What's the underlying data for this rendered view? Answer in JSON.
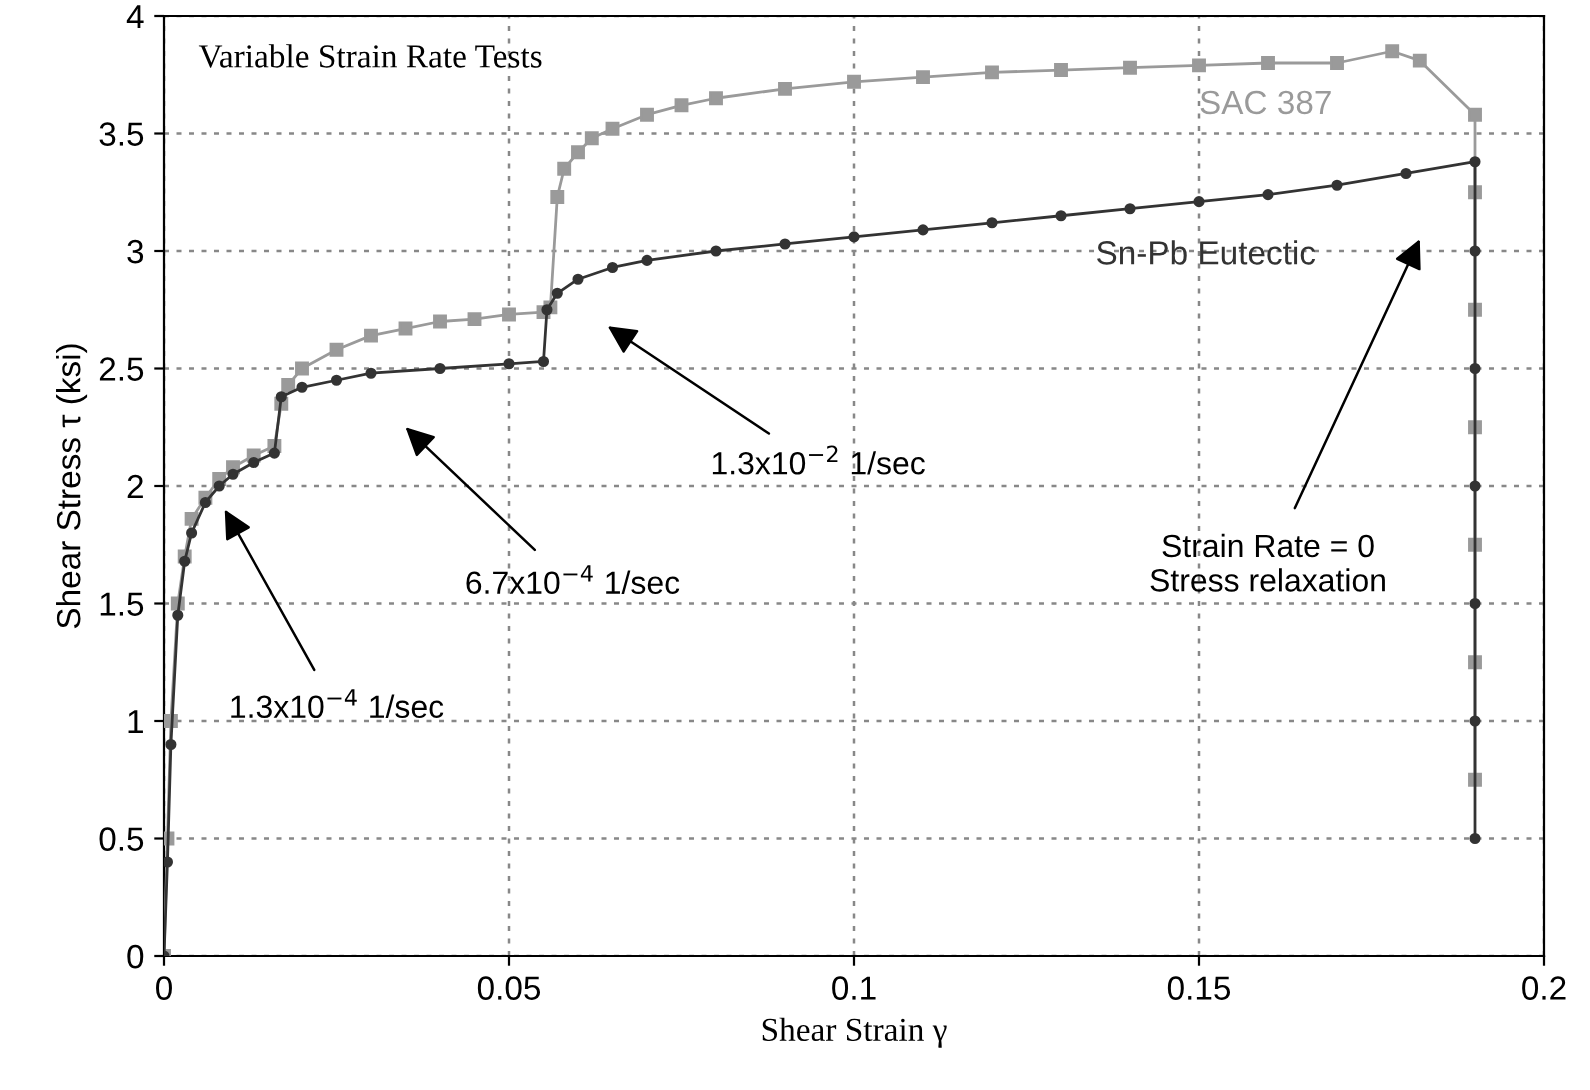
{
  "chart_data": {
    "type": "line",
    "title": "Variable Strain Rate Tests",
    "xlabel": "Shear Strain γ",
    "ylabel": "Shear Stress τ (ksi)",
    "xlim": [
      0,
      0.2
    ],
    "xticks": [
      0,
      0.05,
      0.1,
      0.15,
      0.2
    ],
    "ylim": [
      0,
      4
    ],
    "yticks": [
      0,
      0.5,
      1,
      1.5,
      2,
      2.5,
      3,
      3.5,
      4
    ],
    "grid": true,
    "legend": false,
    "series": [
      {
        "name": "SAC 387",
        "color": "#9a9a9a",
        "marker": "square",
        "x": [
          0,
          0.0005,
          0.001,
          0.002,
          0.003,
          0.004,
          0.006,
          0.008,
          0.01,
          0.013,
          0.016,
          0.017,
          0.018,
          0.02,
          0.025,
          0.03,
          0.035,
          0.04,
          0.045,
          0.05,
          0.055,
          0.056,
          0.057,
          0.058,
          0.06,
          0.062,
          0.065,
          0.07,
          0.075,
          0.08,
          0.09,
          0.1,
          0.11,
          0.12,
          0.13,
          0.14,
          0.15,
          0.16,
          0.17,
          0.178,
          0.182,
          0.19,
          0.19,
          0.19,
          0.19,
          0.19,
          0.19,
          0.19
        ],
        "values": [
          0,
          0.5,
          1.0,
          1.5,
          1.7,
          1.86,
          1.95,
          2.03,
          2.08,
          2.13,
          2.17,
          2.35,
          2.43,
          2.5,
          2.58,
          2.64,
          2.67,
          2.7,
          2.71,
          2.73,
          2.74,
          2.76,
          3.23,
          3.35,
          3.42,
          3.48,
          3.52,
          3.58,
          3.62,
          3.65,
          3.69,
          3.72,
          3.74,
          3.76,
          3.77,
          3.78,
          3.79,
          3.8,
          3.8,
          3.85,
          3.81,
          3.58,
          3.25,
          2.75,
          2.25,
          1.75,
          1.25,
          0.75
        ]
      },
      {
        "name": "Sn-Pb Eutectic",
        "color": "#333333",
        "marker": "circle",
        "x": [
          0,
          0.0005,
          0.001,
          0.002,
          0.003,
          0.004,
          0.006,
          0.008,
          0.01,
          0.013,
          0.016,
          0.017,
          0.02,
          0.025,
          0.03,
          0.04,
          0.05,
          0.055,
          0.0555,
          0.057,
          0.06,
          0.065,
          0.07,
          0.08,
          0.09,
          0.1,
          0.11,
          0.12,
          0.13,
          0.14,
          0.15,
          0.16,
          0.17,
          0.18,
          0.19,
          0.19,
          0.19,
          0.19,
          0.19,
          0.19,
          0.19
        ],
        "values": [
          0,
          0.4,
          0.9,
          1.45,
          1.68,
          1.8,
          1.93,
          2.0,
          2.05,
          2.1,
          2.14,
          2.38,
          2.42,
          2.45,
          2.48,
          2.5,
          2.52,
          2.53,
          2.75,
          2.82,
          2.88,
          2.93,
          2.96,
          3.0,
          3.03,
          3.06,
          3.09,
          3.12,
          3.15,
          3.18,
          3.21,
          3.24,
          3.28,
          3.33,
          3.38,
          3.0,
          2.5,
          2.0,
          1.5,
          1.0,
          0.5
        ]
      }
    ],
    "annotations": [
      "1.3x10$^{−4}$ 1/sec",
      "6.7x10$^{−4}$ 1/sec",
      "1.3x10$^{−2}$ 1/sec",
      "Strain Rate = 0\nStress relaxation"
    ]
  }
}
